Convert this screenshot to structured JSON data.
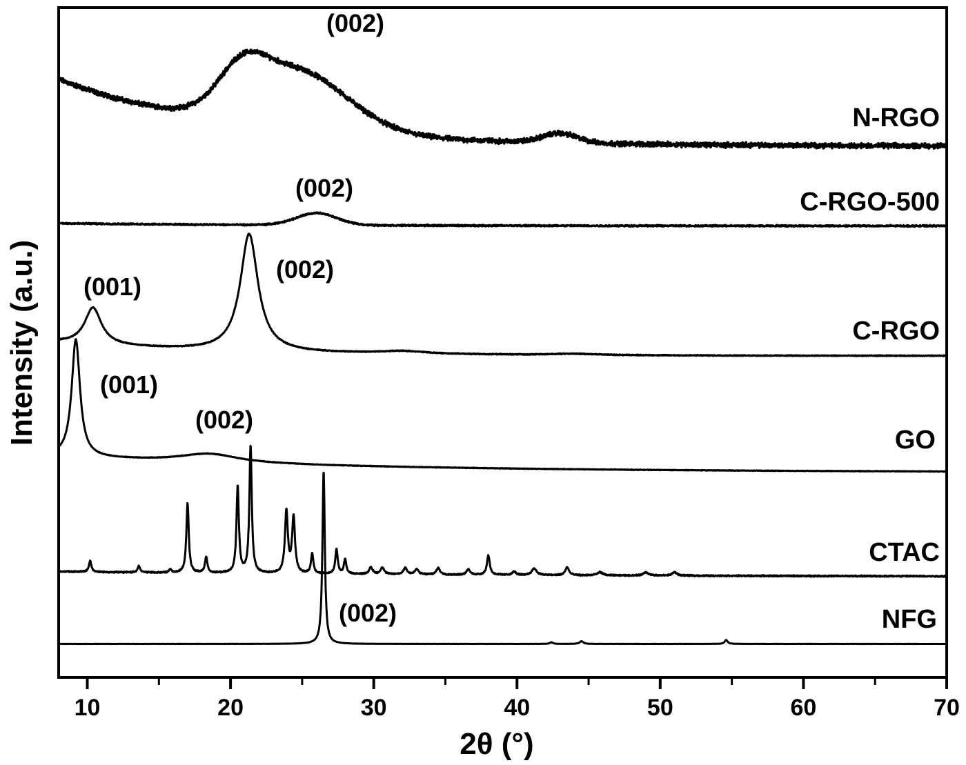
{
  "chart_data": {
    "type": "line",
    "title": "",
    "xlabel": "2θ (°)",
    "ylabel": "Intensity (a.u.)",
    "xlim": [
      8,
      70
    ],
    "ylim": [
      0,
      100
    ],
    "xticks": [
      10,
      20,
      30,
      40,
      50,
      60,
      70
    ],
    "xminor": [
      15,
      25,
      35,
      45,
      55,
      65
    ],
    "yticks": [],
    "grid": false,
    "legend": "none (series labeled at right end of each trace)",
    "color": "#000000",
    "series": [
      {
        "name": "N-RGO",
        "offset": 79.3,
        "background": {
          "amp": 10,
          "decay": 12
        },
        "noise": 0.45,
        "profile": "gaussian",
        "peaks": [
          {
            "x": 20.8,
            "h": 5,
            "w": 1.6
          },
          {
            "x": 24.5,
            "h": 9,
            "w": 3.6
          },
          {
            "x": 43.0,
            "h": 1.4,
            "w": 1.2
          }
        ]
      },
      {
        "name": "C-RGO-500",
        "offset": 67.4,
        "background": {
          "amp": 0.4,
          "decay": 15
        },
        "noise": 0.15,
        "profile": "gaussian",
        "peaks": [
          {
            "x": 26.0,
            "h": 1.8,
            "w": 1.4
          }
        ]
      },
      {
        "name": "C-RGO",
        "offset": 48.0,
        "background": {
          "amp": 2.0,
          "decay": 12
        },
        "noise": 0.08,
        "profile": "lorentzian",
        "peaks": [
          {
            "x": 10.4,
            "h": 5.5,
            "w": 0.7
          },
          {
            "x": 21.3,
            "h": 17.5,
            "w": 0.75
          },
          {
            "x": 32.0,
            "h": 0.4,
            "w": 2.0
          },
          {
            "x": 44.0,
            "h": 0.2,
            "w": 2.0
          }
        ]
      },
      {
        "name": "GO",
        "offset": 30.6,
        "background": {
          "amp": 2.4,
          "decay": 22
        },
        "noise": 0.05,
        "profile": "lorentzian",
        "peaks": [
          {
            "x": 9.2,
            "h": 17.5,
            "w": 0.35
          },
          {
            "x": 18.5,
            "h": 1.3,
            "w": 2.5
          }
        ]
      },
      {
        "name": "CTAC",
        "offset": 15.0,
        "background": {
          "amp": 0.8,
          "decay": 30
        },
        "noise": 0.12,
        "profile": "lorentzian",
        "peaks": [
          {
            "x": 10.2,
            "h": 1.7,
            "w": 0.1
          },
          {
            "x": 13.6,
            "h": 1.0,
            "w": 0.1
          },
          {
            "x": 15.8,
            "h": 0.5,
            "w": 0.1
          },
          {
            "x": 17.0,
            "h": 10.4,
            "w": 0.1
          },
          {
            "x": 18.3,
            "h": 2.4,
            "w": 0.1
          },
          {
            "x": 20.5,
            "h": 13.0,
            "w": 0.1
          },
          {
            "x": 21.4,
            "h": 19.0,
            "w": 0.1
          },
          {
            "x": 23.9,
            "h": 9.3,
            "w": 0.12
          },
          {
            "x": 24.4,
            "h": 8.4,
            "w": 0.12
          },
          {
            "x": 25.7,
            "h": 3.0,
            "w": 0.1
          },
          {
            "x": 27.4,
            "h": 3.7,
            "w": 0.1
          },
          {
            "x": 28.0,
            "h": 2.2,
            "w": 0.1
          },
          {
            "x": 29.8,
            "h": 1.0,
            "w": 0.15
          },
          {
            "x": 30.6,
            "h": 1.0,
            "w": 0.15
          },
          {
            "x": 32.2,
            "h": 1.0,
            "w": 0.15
          },
          {
            "x": 33.0,
            "h": 0.8,
            "w": 0.15
          },
          {
            "x": 34.5,
            "h": 1.0,
            "w": 0.15
          },
          {
            "x": 36.6,
            "h": 0.8,
            "w": 0.15
          },
          {
            "x": 38.0,
            "h": 2.9,
            "w": 0.12
          },
          {
            "x": 39.8,
            "h": 0.5,
            "w": 0.15
          },
          {
            "x": 41.2,
            "h": 1.0,
            "w": 0.2
          },
          {
            "x": 43.5,
            "h": 1.2,
            "w": 0.15
          },
          {
            "x": 45.8,
            "h": 0.5,
            "w": 0.2
          },
          {
            "x": 49.0,
            "h": 0.5,
            "w": 0.2
          },
          {
            "x": 51.0,
            "h": 0.5,
            "w": 0.2
          }
        ]
      },
      {
        "name": "NFG",
        "offset": 5.0,
        "background": {
          "amp": 0,
          "decay": 10
        },
        "noise": 0.02,
        "profile": "lorentzian",
        "peaks": [
          {
            "x": 26.5,
            "h": 25.8,
            "w": 0.1
          },
          {
            "x": 42.4,
            "h": 0.25,
            "w": 0.12
          },
          {
            "x": 44.5,
            "h": 0.4,
            "w": 0.15
          },
          {
            "x": 54.6,
            "h": 0.6,
            "w": 0.12
          }
        ]
      }
    ],
    "annotations": [
      {
        "text": "(002)",
        "series": "N-RGO"
      },
      {
        "text": "(002)",
        "series": "C-RGO-500"
      },
      {
        "text": "(002)",
        "series": "C-RGO"
      },
      {
        "text": "(001)",
        "series": "C-RGO"
      },
      {
        "text": "(001)",
        "series": "GO"
      },
      {
        "text": "(002)",
        "series": "GO"
      },
      {
        "text": "(002)",
        "series": "NFG"
      }
    ]
  }
}
